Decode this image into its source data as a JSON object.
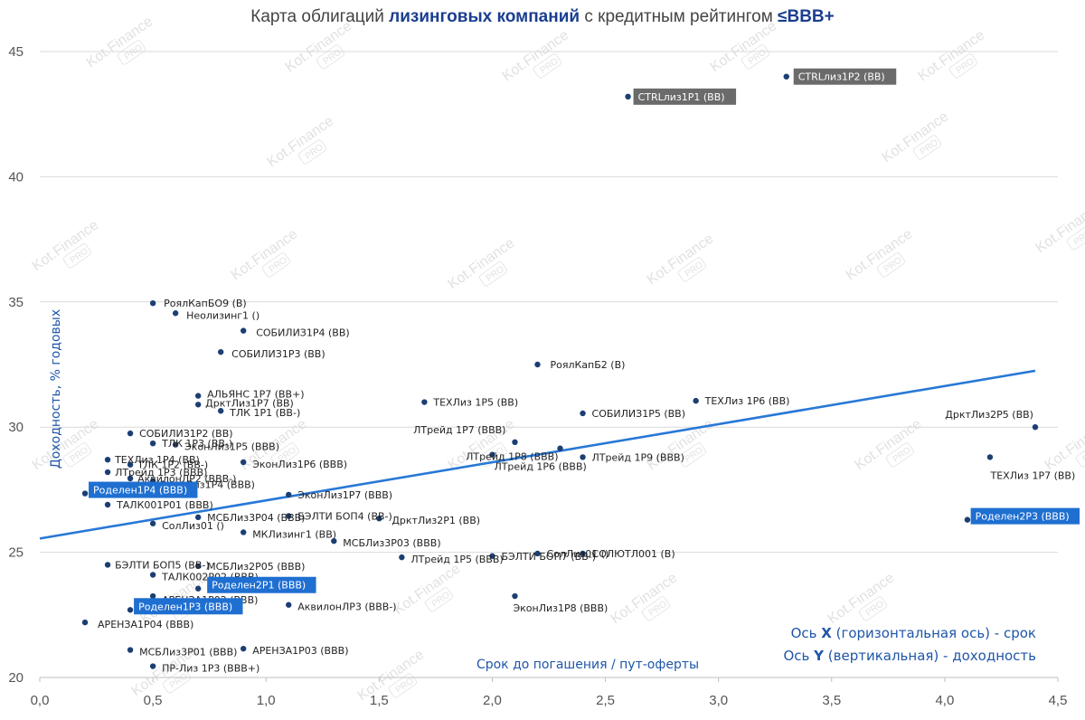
{
  "title": {
    "part1": "Карта облигаций ",
    "part2": "лизинговых компаний",
    "part3": " с кредитным рейтингом ",
    "part4": "≤BBB+"
  },
  "watermark": "Kot.Finance",
  "watermark_badge": "PRO",
  "axis_note_x": {
    "pre": "Ось ",
    "letter": "X",
    "post": " (горизонтальная ось) - срок"
  },
  "axis_note_y": {
    "pre": "Ось ",
    "letter": "Y",
    "post": " (вертикальная) - доходность"
  },
  "colors": {
    "point": "#1b3f73",
    "trend": "#2878d6",
    "highlight_blue": "#1f6fd1",
    "highlight_gray": "#6b6b6b"
  },
  "chart_data": {
    "type": "scatter",
    "title": "Карта облигаций лизинговых компаний с кредитным рейтингом ≤BBB+",
    "xlabel": "Срок до погашения / пут-оферты",
    "ylabel": "Доходность, % годовых",
    "xlim": [
      0,
      4.5
    ],
    "ylim": [
      20,
      45
    ],
    "x_ticks": [
      0,
      0.5,
      1,
      1.5,
      2,
      2.5,
      3,
      3.5,
      4,
      4.5
    ],
    "x_tick_labels": [
      "0,0",
      "0,5",
      "1,0",
      "1,5",
      "2,0",
      "2,5",
      "3,0",
      "3,5",
      "4,0",
      "4,5"
    ],
    "y_ticks": [
      20,
      25,
      30,
      35,
      40,
      45
    ],
    "y_tick_labels": [
      "20",
      "25",
      "30",
      "35",
      "40",
      "45"
    ],
    "grid": "horizontal",
    "trendline": {
      "x": [
        0,
        4.4
      ],
      "y": [
        25.55,
        32.25
      ]
    },
    "points": [
      {
        "label": "CTRLлиз1Р2 (BB)",
        "x": 3.3,
        "y": 44.0,
        "hl": "gray"
      },
      {
        "label": "CTRLлиз1Р1 (BB)",
        "x": 2.6,
        "y": 43.2,
        "hl": "gray"
      },
      {
        "label": "РоялКапБО9 (B)",
        "x": 0.5,
        "y": 34.95
      },
      {
        "label": "Неолизинг1 ()",
        "x": 0.6,
        "y": 34.55
      },
      {
        "label": "СОБИЛИЗ1Р4 (BB)",
        "x": 0.9,
        "y": 33.85
      },
      {
        "label": "СОБИЛИЗ1Р3 (BB)",
        "x": 0.8,
        "y": 33.0
      },
      {
        "label": "РоялКапБ2 (B)",
        "x": 2.2,
        "y": 32.5
      },
      {
        "label": "АЛЬЯНС 1Р7 (BB+)",
        "x": 0.7,
        "y": 31.25
      },
      {
        "label": "ТЕХЛиз 1Р5 (BB)",
        "x": 1.7,
        "y": 31.0
      },
      {
        "label": "ТЕХЛиз 1Р6 (BB)",
        "x": 2.9,
        "y": 31.05
      },
      {
        "label": "ДрктЛиз1Р7 (BB)",
        "x": 0.7,
        "y": 30.9
      },
      {
        "label": "ТЛК 1Р1 (BB-)",
        "x": 0.8,
        "y": 30.65
      },
      {
        "label": "СОБИЛИЗ1Р5 (BB)",
        "x": 2.4,
        "y": 30.55
      },
      {
        "label": "ЛТрейд 1Р7 (BBB)",
        "x": 2.1,
        "y": 29.4
      },
      {
        "label": "ДрктЛиз2Р5 (BB)",
        "x": 4.4,
        "y": 30.0
      },
      {
        "label": "СОБИЛИЗ1Р2 (BB)",
        "x": 0.4,
        "y": 29.75
      },
      {
        "label": "ТЛК 1Р3 (BB-)",
        "x": 0.5,
        "y": 29.35
      },
      {
        "label": "ЭконЛиз1Р5 (BBB)",
        "x": 0.6,
        "y": 29.3
      },
      {
        "label": "ЭконЛиз1Р6 (BBB)",
        "x": 0.9,
        "y": 28.6
      },
      {
        "label": "ЛТрейд 1Р6 (BBB)",
        "x": 2.0,
        "y": 28.9
      },
      {
        "label": "ЛТрейд 1Р9 (BBB)",
        "x": 2.4,
        "y": 28.8
      },
      {
        "label": "ЛТрейд 1Р8 (BBB)",
        "x": 2.3,
        "y": 29.15
      },
      {
        "label": "ТЕХЛиз 1Р7 (BB)",
        "x": 4.2,
        "y": 28.8
      },
      {
        "label": "ТЕХЛиз 1Р4 (BB)",
        "x": 0.3,
        "y": 28.7
      },
      {
        "label": "ТЛК 1Р2 (BB-)",
        "x": 0.4,
        "y": 28.5
      },
      {
        "label": "ЛТрейд 1Р3 (BBB)",
        "x": 0.3,
        "y": 28.2
      },
      {
        "label": "АквилонЛР2 (BBB-)",
        "x": 0.4,
        "y": 27.95
      },
      {
        "label": "ЭконЛиз1Р4 (BBB)",
        "x": 0.5,
        "y": 27.85
      },
      {
        "label": "Роделен1Р4 (BBB)",
        "x": 0.2,
        "y": 27.35,
        "hl": "blue"
      },
      {
        "label": "ЭконЛиз1Р7 (BBB)",
        "x": 1.1,
        "y": 27.3
      },
      {
        "label": "ТАЛК001Р01 (BBB)",
        "x": 0.3,
        "y": 26.9
      },
      {
        "label": "МСБЛиз3Р04 (BBB)",
        "x": 0.7,
        "y": 26.4
      },
      {
        "label": "БЭЛТИ БОП4 (BB-)",
        "x": 1.1,
        "y": 26.45
      },
      {
        "label": "СолЛиз01 ()",
        "x": 0.5,
        "y": 26.15
      },
      {
        "label": "ДрктЛиз2Р1 (BB)",
        "x": 1.5,
        "y": 26.35
      },
      {
        "label": "Роделен2Р3 (BBB)",
        "x": 4.1,
        "y": 26.3,
        "hl": "blue"
      },
      {
        "label": "МКЛизинг1 (BB)",
        "x": 0.9,
        "y": 25.8
      },
      {
        "label": "МСБЛиз3Р03 (BBB)",
        "x": 1.3,
        "y": 25.45
      },
      {
        "label": "ЛТрейд 1Р5 (BBB)",
        "x": 1.6,
        "y": 24.8
      },
      {
        "label": "БЭЛТИ БОП7 (BB-)",
        "x": 2.0,
        "y": 24.85
      },
      {
        "label": "СолЛиз01 ()",
        "x": 2.2,
        "y": 24.95
      },
      {
        "label": "СОЛЮТЛ001 (B)",
        "x": 2.4,
        "y": 24.95
      },
      {
        "label": "БЭЛТИ БОП5 (BB-)",
        "x": 0.3,
        "y": 24.5
      },
      {
        "label": "МСБЛиз2Р05 (BBB)",
        "x": 0.7,
        "y": 24.45
      },
      {
        "label": "ТАЛК002Р02 (BBB)",
        "x": 0.5,
        "y": 24.1
      },
      {
        "label": "Роделен2Р1 (BBB)",
        "x": 0.7,
        "y": 23.55,
        "hl": "blue"
      },
      {
        "label": "АРЕНЗА1Р02 (BBB)",
        "x": 0.5,
        "y": 23.25
      },
      {
        "label": "ЭконЛиз1Р8 (BBB)",
        "x": 2.1,
        "y": 23.25
      },
      {
        "label": "АквилонЛР3 (BBB-)",
        "x": 1.1,
        "y": 22.9
      },
      {
        "label": "Роделен1Р3 (BBB)",
        "x": 0.4,
        "y": 22.7,
        "hl": "blue"
      },
      {
        "label": "АРЕНЗА1Р04 (BBB)",
        "x": 0.2,
        "y": 22.2
      },
      {
        "label": "АРЕНЗА1Р03 (BBB)",
        "x": 0.9,
        "y": 21.15
      },
      {
        "label": "МСБЛиз3Р01 (BBB)",
        "x": 0.4,
        "y": 21.1
      },
      {
        "label": "ПР-Лиз 1Р3 (BBB+)",
        "x": 0.5,
        "y": 20.45
      }
    ]
  }
}
